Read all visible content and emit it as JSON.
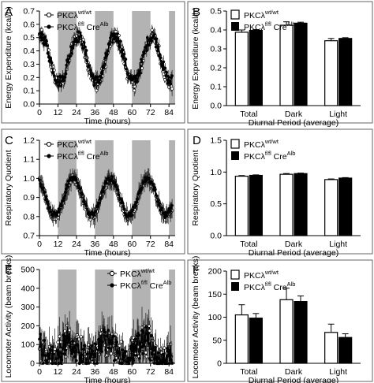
{
  "figure": {
    "legend_ko": {
      "base": "PKCλ",
      "sup1": "f/fl",
      "mid": " Cre",
      "sup2": "Alb"
    },
    "legend_wt": {
      "base": "PKCλ",
      "sup1": "wt/wt"
    }
  },
  "colors": {
    "wt_fill": "#ffffff",
    "ko_fill": "#000000",
    "dark_period_band": "#b3b3b3",
    "frame": "#666666"
  },
  "chart_data": [
    {
      "panel": "A",
      "type": "line",
      "xlabel": "Time (hours)",
      "ylabel": "Energy Expenditure (kcal/h)",
      "xlim": [
        0,
        88
      ],
      "ylim": [
        0,
        0.7
      ],
      "xticks": [
        0,
        12,
        24,
        36,
        48,
        60,
        72,
        84
      ],
      "yticks": [
        0,
        0.1,
        0.2,
        0.3,
        0.4,
        0.5,
        0.6,
        0.7
      ],
      "ytick_labels": [
        "0.0",
        "0.1",
        "0.2",
        "0.3",
        "0.4",
        "0.5",
        "0.6",
        "0.7"
      ],
      "dark_periods": [
        [
          12,
          24
        ],
        [
          36,
          48
        ],
        [
          60,
          72
        ],
        [
          84,
          88
        ]
      ],
      "legend_placement": "top-left",
      "series_pattern": {
        "x_start": 0,
        "x_end": 86,
        "step": 0.5,
        "wt": {
          "base": 0.33,
          "amplitude": 0.18,
          "peak_hour": 25,
          "period": 24,
          "noise": 0.05,
          "err": 0.04
        },
        "ko": {
          "base": 0.34,
          "amplitude": 0.17,
          "peak_hour": 25,
          "period": 24,
          "noise": 0.045,
          "err": 0.035
        }
      }
    },
    {
      "panel": "B",
      "type": "bar",
      "xlabel": "Diurnal Period (average)",
      "ylabel": "Energy Expenditure (kcal/h)",
      "ylim": [
        0,
        0.5
      ],
      "yticks": [
        0,
        0.1,
        0.2,
        0.3,
        0.4,
        0.5
      ],
      "ytick_labels": [
        "0.0",
        "0.1",
        "0.2",
        "0.3",
        "0.4",
        "0.5"
      ],
      "categories": [
        "Total",
        "Dark",
        "Light"
      ],
      "legend_placement": "top-left",
      "series": [
        {
          "group": "wt",
          "values": [
            0.388,
            0.425,
            0.343
          ],
          "errors": [
            0.012,
            0.018,
            0.012
          ]
        },
        {
          "group": "ko",
          "values": [
            0.398,
            0.436,
            0.355
          ],
          "errors": [
            0.004,
            0.005,
            0.004
          ]
        }
      ]
    },
    {
      "panel": "C",
      "type": "line",
      "xlabel": "Time (hours)",
      "ylabel": "Respiratory Quotient",
      "xlim": [
        0,
        88
      ],
      "ylim": [
        0.7,
        1.2
      ],
      "xticks": [
        0,
        12,
        24,
        36,
        48,
        60,
        72,
        84
      ],
      "yticks": [
        0.7,
        0.8,
        0.9,
        1.0,
        1.1,
        1.2
      ],
      "ytick_labels": [
        "0.7",
        "0.8",
        "0.9",
        "1.0",
        "1.1",
        "1.2"
      ],
      "dark_periods": [
        [
          12,
          24
        ],
        [
          36,
          48
        ],
        [
          60,
          72
        ],
        [
          84,
          88
        ]
      ],
      "legend_placement": "top-left",
      "series_pattern": {
        "x_start": 0,
        "x_end": 86,
        "step": 0.5,
        "wt": {
          "base": 0.9,
          "amplitude": 0.1,
          "peak_hour": 22,
          "period": 24,
          "noise": 0.02,
          "err": 0.04
        },
        "ko": {
          "base": 0.905,
          "amplitude": 0.095,
          "peak_hour": 22,
          "period": 24,
          "noise": 0.015,
          "err": 0.03
        }
      }
    },
    {
      "panel": "D",
      "type": "bar",
      "xlabel": "Diurnal Period (average)",
      "ylabel": "Respiratory Quotient",
      "ylim": [
        0,
        1.5
      ],
      "yticks": [
        0,
        0.5,
        1.0,
        1.5
      ],
      "ytick_labels": [
        "0.0",
        "0.5",
        "1.0",
        "1.5"
      ],
      "categories": [
        "Total",
        "Dark",
        "Light"
      ],
      "legend_placement": "top-left",
      "series": [
        {
          "group": "wt",
          "values": [
            0.935,
            0.965,
            0.882
          ],
          "errors": [
            0.01,
            0.012,
            0.01
          ]
        },
        {
          "group": "ko",
          "values": [
            0.948,
            0.976,
            0.905
          ],
          "errors": [
            0.008,
            0.008,
            0.008
          ]
        }
      ]
    },
    {
      "panel": "E",
      "type": "line",
      "xlabel": "Time (hours)",
      "ylabel": "Locomoter Activity (beam breaks)",
      "xlim": [
        0,
        88
      ],
      "ylim": [
        0,
        500
      ],
      "xticks": [
        0,
        12,
        24,
        36,
        48,
        60,
        72,
        84
      ],
      "yticks": [
        0,
        100,
        200,
        300,
        400,
        500
      ],
      "ytick_labels": [
        "0",
        "100",
        "200",
        "300",
        "400",
        "500"
      ],
      "dark_periods": [
        [
          12,
          24
        ],
        [
          36,
          48
        ],
        [
          60,
          72
        ],
        [
          84,
          88
        ]
      ],
      "legend_placement": "top-right",
      "series_pattern": {
        "x_start": 0,
        "x_end": 86,
        "step": 0.5,
        "wt": {
          "base": 70,
          "amplitude": 60,
          "peak_hour": 20,
          "period": 24,
          "noise": 90,
          "err": 80
        },
        "ko": {
          "base": 65,
          "amplitude": 55,
          "peak_hour": 20,
          "period": 24,
          "noise": 80,
          "err": 60
        }
      }
    },
    {
      "panel": "F",
      "type": "bar",
      "xlabel": "Diurnal Period (average)",
      "ylabel": "Locomoter Activity (beam breaks)",
      "ylim": [
        0,
        200
      ],
      "yticks": [
        0,
        50,
        100,
        150,
        200
      ],
      "ytick_labels": [
        "0",
        "50",
        "100",
        "150",
        "200"
      ],
      "categories": [
        "Total",
        "Dark",
        "Light"
      ],
      "legend_placement": "top-left",
      "series": [
        {
          "group": "wt",
          "values": [
            105,
            138,
            67
          ],
          "errors": [
            22,
            25,
            18
          ]
        },
        {
          "group": "ko",
          "values": [
            98,
            134,
            56
          ],
          "errors": [
            10,
            12,
            8
          ]
        }
      ]
    }
  ]
}
